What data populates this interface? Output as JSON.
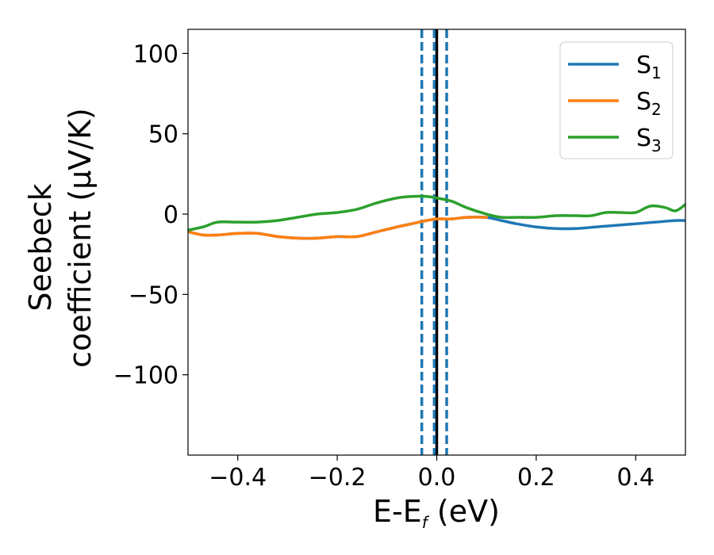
{
  "chart_data": {
    "type": "line",
    "title": "",
    "xlabel": {
      "main": "E-E",
      "sub": "f",
      "suffix": " (eV)"
    },
    "ylabel": {
      "line1": "Seebeck",
      "line2": "coefficient  (μV/K)"
    },
    "xlim": [
      -0.5,
      0.5
    ],
    "ylim": [
      -150,
      115
    ],
    "xticks": [
      -0.4,
      -0.2,
      0.0,
      0.2,
      0.4
    ],
    "xtick_labels": [
      "−0.4",
      "−0.2",
      "0.0",
      "0.2",
      "0.4"
    ],
    "yticks": [
      -100,
      -50,
      0,
      50,
      100
    ],
    "ytick_labels": [
      "−100",
      "−50",
      "0",
      "50",
      "100"
    ],
    "grid": false,
    "legend_position": "top-right",
    "vlines": [
      {
        "x": 0.0,
        "style": "solid",
        "color": "#000000"
      },
      {
        "x": -0.03,
        "style": "dashed",
        "color": "#1f77b4"
      },
      {
        "x": -0.005,
        "style": "dashed",
        "color": "#1f77b4"
      },
      {
        "x": 0.02,
        "style": "dashed",
        "color": "#1f77b4"
      }
    ],
    "series": [
      {
        "name": "S",
        "sub": "1",
        "color": "#1f77b4",
        "x": [
          -0.5,
          -0.47,
          -0.44,
          -0.4,
          -0.36,
          -0.32,
          -0.28,
          -0.24,
          -0.2,
          -0.16,
          -0.12,
          -0.08,
          -0.05,
          -0.02,
          0.0,
          0.03,
          0.06,
          0.1,
          0.13,
          0.16,
          0.2,
          0.24,
          0.28,
          0.32,
          0.36,
          0.4,
          0.44,
          0.48,
          0.5
        ],
        "y": [
          -11,
          -13,
          -13,
          -12,
          -12,
          -14,
          -15,
          -15,
          -14,
          -14,
          -11,
          -8,
          -6,
          -4,
          -3,
          -3,
          -2,
          -2,
          -4,
          -6,
          -8,
          -9,
          -9,
          -8,
          -7,
          -6,
          -5,
          -4,
          -4
        ]
      },
      {
        "name": "S",
        "sub": "2",
        "color": "#ff7f0e",
        "x": [
          -0.5,
          -0.47,
          -0.44,
          -0.4,
          -0.36,
          -0.32,
          -0.28,
          -0.24,
          -0.2,
          -0.16,
          -0.12,
          -0.08,
          -0.05,
          -0.02,
          0.0,
          0.03,
          0.06,
          0.1
        ],
        "y": [
          -11,
          -13,
          -13,
          -12,
          -12,
          -14,
          -15,
          -15,
          -14,
          -14,
          -11,
          -8,
          -6,
          -4,
          -3,
          -3,
          -2,
          -2
        ]
      },
      {
        "name": "S",
        "sub": "3",
        "color": "#2ca02c",
        "x": [
          -0.5,
          -0.47,
          -0.44,
          -0.4,
          -0.36,
          -0.32,
          -0.28,
          -0.24,
          -0.2,
          -0.16,
          -0.12,
          -0.08,
          -0.05,
          -0.02,
          0.0,
          0.03,
          0.06,
          0.1,
          0.13,
          0.16,
          0.2,
          0.24,
          0.28,
          0.31,
          0.34,
          0.37,
          0.4,
          0.43,
          0.46,
          0.48,
          0.5
        ],
        "y": [
          -10,
          -8,
          -5,
          -5,
          -5,
          -4,
          -2,
          0,
          1,
          3,
          7,
          10,
          11,
          11,
          10,
          8,
          4,
          0,
          -2,
          -2,
          -2,
          -1,
          -1,
          -1,
          1,
          1,
          1,
          5,
          4,
          2,
          6
        ]
      }
    ]
  }
}
